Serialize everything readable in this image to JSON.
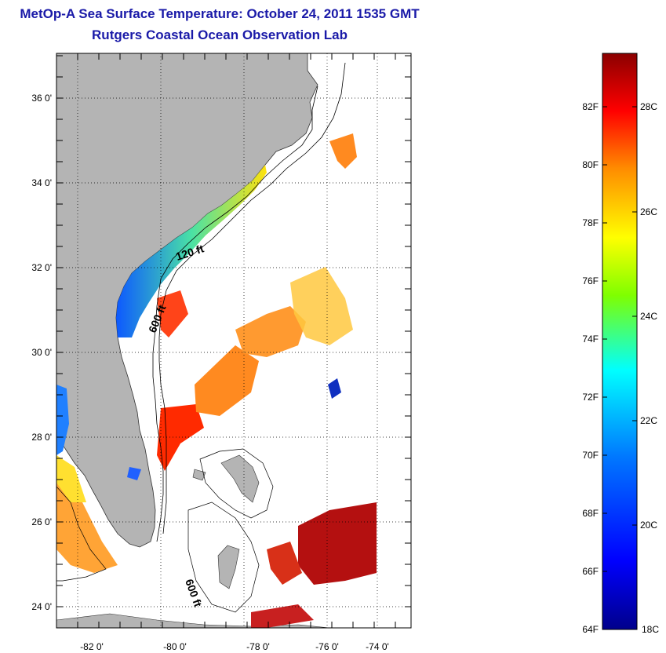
{
  "header": {
    "title": "MetOp-A Sea Surface Temperature:  October 24, 2011 1535 GMT",
    "subtitle": "Rutgers Coastal Ocean Observation Lab"
  },
  "map": {
    "lat_ticks": [
      "36 0'",
      "34 0'",
      "32 0'",
      "30 0'",
      "28 0'",
      "26 0'",
      "24 0'"
    ],
    "lon_ticks": [
      "-82 0'",
      "-80 0'",
      "-78 0'",
      "-76 0'",
      "-74 0'"
    ],
    "contour_labels": [
      "120 ft",
      "600 ft",
      "600 ft"
    ],
    "land_color": "#b4b4b4",
    "ocean_color": "#ffffff"
  },
  "colorbar": {
    "fahrenheit_labels": [
      "82F",
      "80F",
      "78F",
      "76F",
      "74F",
      "72F",
      "70F",
      "68F",
      "66F",
      "64F"
    ],
    "celsius_labels": [
      "28C",
      "26C",
      "24C",
      "22C",
      "20C",
      "18C"
    ],
    "colors": [
      "#8b0000",
      "#ff0000",
      "#ff8c00",
      "#ffff00",
      "#7fff00",
      "#00ffff",
      "#0078ff",
      "#0000ff",
      "#00008b"
    ]
  }
}
